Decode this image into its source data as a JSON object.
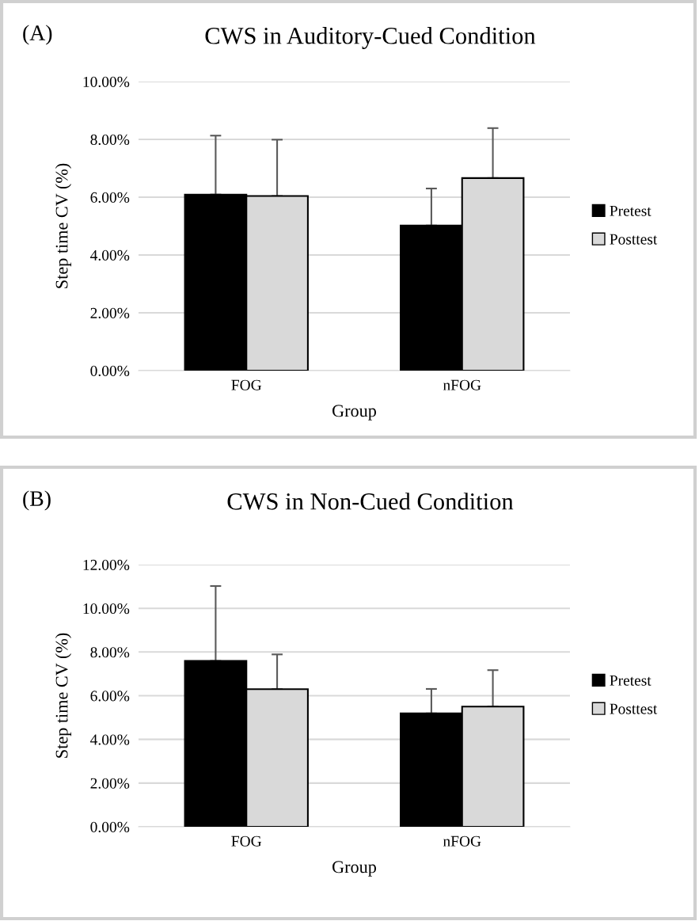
{
  "chart_data": [
    {
      "type": "bar",
      "title": "CWS in Auditory-Cued Condition",
      "xlabel": "Group",
      "ylabel": "Step time CV (%)",
      "annotations": [
        "(A)"
      ],
      "categories": [
        "FOG",
        "nFOG"
      ],
      "series": [
        {
          "name": "Pretest",
          "color": "#000000",
          "values": [
            6.09,
            5.02
          ],
          "errors": [
            [
              6.09,
              8.13
            ],
            [
              5.02,
              6.3
            ]
          ]
        },
        {
          "name": "Posttest",
          "color": "#d9d9d9",
          "values": [
            6.04,
            6.66
          ],
          "errors": [
            [
              6.04,
              7.99
            ],
            [
              6.66,
              8.39
            ]
          ]
        }
      ],
      "ylim": [
        0,
        10
      ],
      "yticks": [
        {
          "value": 0,
          "label": "0.00%"
        },
        {
          "value": 2,
          "label": "2.00%"
        },
        {
          "value": 4,
          "label": "4.00%"
        },
        {
          "value": 6,
          "label": "6.00%"
        },
        {
          "value": 8,
          "label": "8.00%"
        },
        {
          "value": 10,
          "label": "10.00%"
        }
      ],
      "grid": "y",
      "legend": "right"
    },
    {
      "type": "bar",
      "title": "CWS in Non-Cued Condition",
      "xlabel": "Group",
      "ylabel": "Step time CV (%)",
      "annotations": [
        "(B)"
      ],
      "categories": [
        "FOG",
        "nFOG"
      ],
      "series": [
        {
          "name": "Pretest",
          "color": "#000000",
          "values": [
            7.59,
            5.19
          ],
          "errors": [
            [
              7.59,
              11.02
            ],
            [
              5.19,
              6.31
            ]
          ]
        },
        {
          "name": "Posttest",
          "color": "#d9d9d9",
          "values": [
            6.3,
            5.5
          ],
          "errors": [
            [
              6.3,
              7.89
            ],
            [
              5.5,
              7.17
            ]
          ]
        }
      ],
      "ylim": [
        0,
        12
      ],
      "yticks": [
        {
          "value": 0,
          "label": "0.00%"
        },
        {
          "value": 2,
          "label": "2.00%"
        },
        {
          "value": 4,
          "label": "4.00%"
        },
        {
          "value": 6,
          "label": "6.00%"
        },
        {
          "value": 8,
          "label": "8.00%"
        },
        {
          "value": 10,
          "label": "10.00%"
        },
        {
          "value": 12,
          "label": "12.00%"
        }
      ],
      "grid": "y",
      "legend": "right"
    }
  ]
}
